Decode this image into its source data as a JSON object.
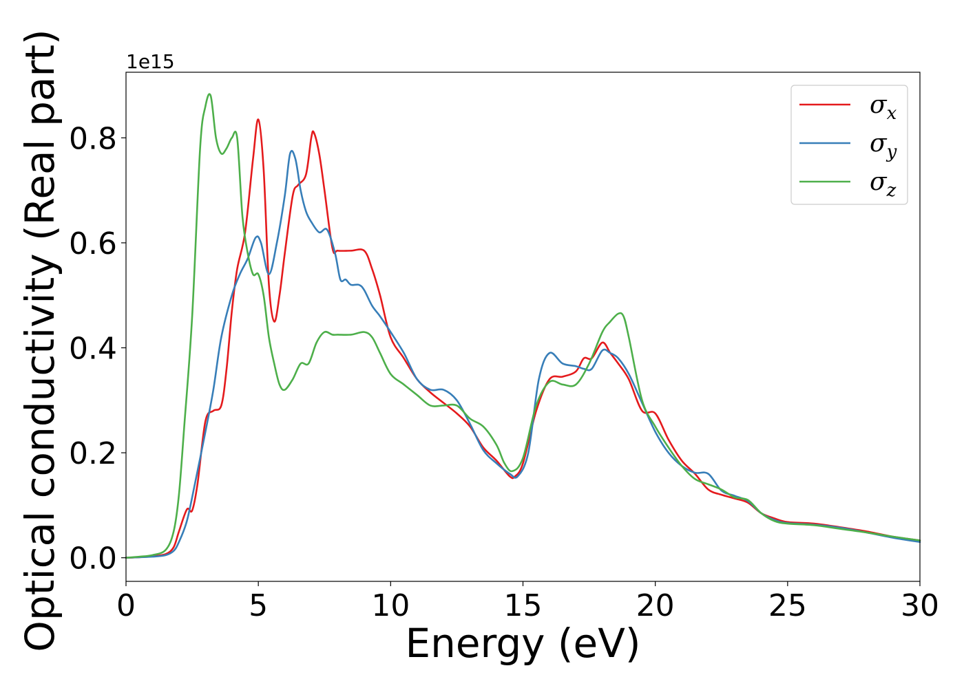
{
  "chart_data": {
    "type": "line",
    "xlabel": "Energy (eV)",
    "ylabel": "Optical conductivity (Real part)",
    "y_offset_label": "1e15",
    "xlim": [
      0,
      30
    ],
    "ylim": [
      -0.045,
      0.925
    ],
    "x_ticks": [
      0,
      5,
      10,
      15,
      20,
      25,
      30
    ],
    "x_tick_labels": [
      "0",
      "5",
      "10",
      "15",
      "20",
      "25",
      "30"
    ],
    "y_ticks": [
      0.0,
      0.2,
      0.4,
      0.6,
      0.8
    ],
    "y_tick_labels": [
      "0.0",
      "0.2",
      "0.4",
      "0.6",
      "0.8"
    ],
    "grid": false,
    "legend_position": "top-right",
    "series": [
      {
        "name": "σx",
        "legend_symbol": "σ",
        "legend_sub": "x",
        "color": "#e41a1c",
        "x": [
          0,
          0.5,
          1.0,
          1.5,
          1.8,
          2.0,
          2.3,
          2.5,
          2.7,
          3.0,
          3.3,
          3.6,
          3.8,
          4.0,
          4.2,
          4.5,
          4.8,
          5.0,
          5.2,
          5.4,
          5.6,
          5.8,
          6.0,
          6.3,
          6.5,
          6.8,
          7.0,
          7.1,
          7.3,
          7.5,
          7.8,
          8.0,
          8.5,
          9.0,
          9.3,
          9.6,
          10.0,
          10.5,
          11.0,
          11.5,
          12.0,
          12.5,
          13.0,
          13.5,
          14.0,
          14.5,
          14.7,
          15.0,
          15.5,
          16.0,
          16.5,
          17.0,
          17.3,
          17.6,
          18.0,
          18.3,
          18.6,
          19.0,
          19.5,
          20.0,
          20.5,
          21.0,
          21.5,
          22.0,
          22.5,
          23.0,
          23.5,
          24.0,
          24.5,
          25.0,
          26.0,
          27.0,
          28.0,
          29.0,
          30.0
        ],
        "values": [
          0.0,
          0.001,
          0.003,
          0.007,
          0.02,
          0.05,
          0.092,
          0.09,
          0.14,
          0.26,
          0.28,
          0.29,
          0.36,
          0.47,
          0.55,
          0.62,
          0.76,
          0.835,
          0.74,
          0.52,
          0.45,
          0.5,
          0.58,
          0.69,
          0.71,
          0.73,
          0.8,
          0.81,
          0.77,
          0.7,
          0.59,
          0.585,
          0.585,
          0.585,
          0.55,
          0.5,
          0.42,
          0.38,
          0.34,
          0.315,
          0.295,
          0.275,
          0.25,
          0.21,
          0.185,
          0.155,
          0.155,
          0.18,
          0.28,
          0.34,
          0.345,
          0.355,
          0.38,
          0.38,
          0.41,
          0.39,
          0.37,
          0.34,
          0.28,
          0.275,
          0.225,
          0.185,
          0.16,
          0.13,
          0.12,
          0.113,
          0.105,
          0.085,
          0.075,
          0.068,
          0.065,
          0.058,
          0.05,
          0.04,
          0.033
        ]
      },
      {
        "name": "σy",
        "legend_symbol": "σ",
        "legend_sub": "y",
        "color": "#377eb8",
        "x": [
          0,
          0.5,
          1.0,
          1.5,
          1.8,
          2.0,
          2.3,
          2.6,
          3.0,
          3.3,
          3.6,
          4.0,
          4.3,
          4.6,
          4.9,
          5.1,
          5.4,
          5.7,
          6.0,
          6.2,
          6.4,
          6.6,
          6.8,
          7.0,
          7.3,
          7.6,
          7.9,
          8.1,
          8.3,
          8.5,
          8.8,
          9.0,
          9.3,
          9.6,
          10.0,
          10.5,
          11.0,
          11.5,
          12.0,
          12.5,
          13.0,
          13.5,
          14.0,
          14.5,
          14.8,
          15.2,
          15.6,
          16.0,
          16.5,
          17.0,
          17.3,
          17.6,
          18.0,
          18.3,
          18.6,
          19.0,
          19.5,
          20.0,
          20.5,
          21.0,
          21.5,
          22.0,
          22.5,
          23.0,
          23.5,
          24.0,
          24.5,
          25.0,
          26.0,
          27.0,
          28.0,
          29.0,
          30.0
        ],
        "values": [
          0.0,
          0.001,
          0.002,
          0.005,
          0.013,
          0.03,
          0.07,
          0.14,
          0.24,
          0.32,
          0.42,
          0.5,
          0.54,
          0.57,
          0.61,
          0.6,
          0.54,
          0.6,
          0.69,
          0.77,
          0.76,
          0.7,
          0.66,
          0.64,
          0.62,
          0.625,
          0.58,
          0.53,
          0.53,
          0.52,
          0.52,
          0.51,
          0.48,
          0.46,
          0.43,
          0.39,
          0.34,
          0.32,
          0.32,
          0.3,
          0.255,
          0.205,
          0.18,
          0.16,
          0.155,
          0.2,
          0.34,
          0.39,
          0.37,
          0.365,
          0.36,
          0.36,
          0.395,
          0.39,
          0.38,
          0.35,
          0.295,
          0.24,
          0.2,
          0.175,
          0.162,
          0.16,
          0.128,
          0.118,
          0.108,
          0.085,
          0.072,
          0.066,
          0.063,
          0.057,
          0.048,
          0.038,
          0.03
        ]
      },
      {
        "name": "σz",
        "legend_symbol": "σ",
        "legend_sub": "z",
        "color": "#4daf4a",
        "x": [
          0,
          0.5,
          1.0,
          1.5,
          1.8,
          2.0,
          2.2,
          2.5,
          2.8,
          3.0,
          3.2,
          3.4,
          3.6,
          3.8,
          4.0,
          4.2,
          4.4,
          4.6,
          4.8,
          5.0,
          5.2,
          5.4,
          5.6,
          5.8,
          6.0,
          6.3,
          6.6,
          6.9,
          7.2,
          7.5,
          7.8,
          8.0,
          8.5,
          9.0,
          9.3,
          9.6,
          10.0,
          10.5,
          11.0,
          11.5,
          12.0,
          12.5,
          13.0,
          13.5,
          14.0,
          14.3,
          14.6,
          15.0,
          15.5,
          16.0,
          16.5,
          17.0,
          17.5,
          18.0,
          18.3,
          18.6,
          18.8,
          19.0,
          19.5,
          20.0,
          20.5,
          21.0,
          21.5,
          22.0,
          22.5,
          23.0,
          23.5,
          24.0,
          24.5,
          25.0,
          26.0,
          27.0,
          28.0,
          29.0,
          30.0
        ],
        "values": [
          0.0,
          0.002,
          0.005,
          0.015,
          0.05,
          0.12,
          0.25,
          0.46,
          0.78,
          0.86,
          0.88,
          0.8,
          0.77,
          0.78,
          0.8,
          0.8,
          0.65,
          0.58,
          0.54,
          0.54,
          0.5,
          0.42,
          0.37,
          0.33,
          0.32,
          0.34,
          0.37,
          0.37,
          0.41,
          0.43,
          0.425,
          0.425,
          0.425,
          0.43,
          0.42,
          0.39,
          0.35,
          0.33,
          0.31,
          0.29,
          0.29,
          0.29,
          0.265,
          0.25,
          0.215,
          0.18,
          0.165,
          0.19,
          0.29,
          0.335,
          0.33,
          0.33,
          0.37,
          0.43,
          0.45,
          0.465,
          0.46,
          0.42,
          0.3,
          0.25,
          0.21,
          0.175,
          0.15,
          0.14,
          0.13,
          0.115,
          0.11,
          0.085,
          0.07,
          0.065,
          0.062,
          0.055,
          0.048,
          0.04,
          0.033
        ]
      }
    ]
  }
}
